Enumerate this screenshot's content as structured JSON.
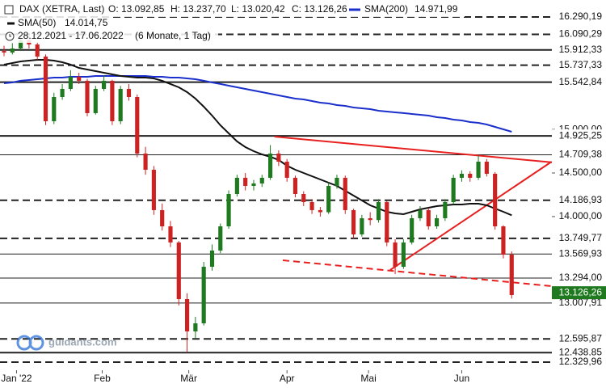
{
  "chart_data": {
    "type": "candlestick",
    "header": {
      "instrument": "DAX (XETRA, Last)",
      "ohlc": [
        "O: 13.092,85",
        "H: 13.237,70",
        "L: 13.020,42",
        "C: 13.126,26"
      ],
      "range": "28.12.2021 - 17.06.2022",
      "period": "(6 Monate, 1 Tag)"
    },
    "watermark": "guidants.com",
    "up_color": "#1f7a1f",
    "down_color": "#cc2222",
    "xlim": [
      -0.485,
      65.83
    ],
    "ylim": [
      12237,
      16485
    ],
    "xticks": [
      {
        "value": 1.5,
        "label": "Jan '22"
      },
      {
        "value": 11.8,
        "label": "Feb"
      },
      {
        "value": 22.2,
        "label": "Mär"
      },
      {
        "value": 34,
        "label": "Apr"
      },
      {
        "value": 43.8,
        "label": "Mai"
      },
      {
        "value": 55,
        "label": "Jun"
      }
    ],
    "yticks": [
      {
        "value": 15000,
        "label": "15.000,00"
      },
      {
        "value": 14500,
        "label": "14.500,00"
      },
      {
        "value": 14000,
        "label": "14.000,00"
      }
    ],
    "levels": [
      {
        "value": 16290.19,
        "label": "16.290,19",
        "style": "dashed"
      },
      {
        "value": 16090.29,
        "label": "16.090,29",
        "style": "dashed"
      },
      {
        "value": 15912.33,
        "label": "15.912,33",
        "style": "thick"
      },
      {
        "value": 15737.33,
        "label": "15.737,33",
        "style": "dashed"
      },
      {
        "value": 15542.84,
        "label": "15.542,84",
        "style": "thick"
      },
      {
        "value": 14925.25,
        "label": "14.925,25",
        "style": "thick"
      },
      {
        "value": 14709.38,
        "label": "14.709,38",
        "style": "thin"
      },
      {
        "value": 14186.93,
        "label": "14.186,93",
        "style": "dashed"
      },
      {
        "value": 13749.77,
        "label": "13.749,77",
        "style": "dashed"
      },
      {
        "value": 13569.93,
        "label": "13.569,93",
        "style": "thin"
      },
      {
        "value": 13294.0,
        "label": "13.294,00",
        "style": "thin"
      },
      {
        "value": 13007.91,
        "label": "13.007,91",
        "style": "thin"
      },
      {
        "value": 12595.87,
        "label": "12.595,87",
        "style": "dashed"
      },
      {
        "value": 12438.85,
        "label": "12.438,85",
        "style": "thick"
      },
      {
        "value": 12329.96,
        "label": "12.329,96",
        "style": "dashed"
      }
    ],
    "last_price": {
      "value": 13126.26,
      "label": "13.126,26",
      "color": "#1f7a1f"
    },
    "trendlines": [
      {
        "from": [
          32.5,
          14917
        ],
        "to": [
          72.3,
          14565
        ],
        "color": "#e82020",
        "style": "solid"
      },
      {
        "from": [
          33.5,
          13498
        ],
        "to": [
          65.8,
          13202
        ],
        "color": "#e82020",
        "style": "dashed"
      },
      {
        "from": [
          46.4,
          13387
        ],
        "to": [
          65.8,
          14630
        ],
        "color": "#e82020",
        "style": "solid"
      }
    ],
    "series": [
      {
        "name": "SMA(200)",
        "label": "14.971,99",
        "color": "#1a2fcc",
        "values": [
          15530,
          15539,
          15558,
          15567,
          15576,
          15585,
          15595,
          15595,
          15604,
          15604,
          15604,
          15613,
          15613,
          15613,
          15613,
          15613,
          15613,
          15613,
          15604,
          15604,
          15595,
          15595,
          15585,
          15576,
          15558,
          15539,
          15521,
          15502,
          15483,
          15465,
          15446,
          15428,
          15409,
          15391,
          15372,
          15353,
          15344,
          15326,
          15307,
          15298,
          15279,
          15270,
          15251,
          15242,
          15233,
          15214,
          15205,
          15196,
          15187,
          15177,
          15168,
          15159,
          15140,
          15131,
          15112,
          15103,
          15084,
          15075,
          15057,
          15029,
          15001,
          14973
        ]
      },
      {
        "name": "SMA(50)",
        "label": "14.014,75",
        "color": "#111111",
        "values": [
          15743,
          15762,
          15780,
          15789,
          15799,
          15799,
          15789,
          15771,
          15743,
          15706,
          15687,
          15669,
          15650,
          15632,
          15613,
          15604,
          15595,
          15595,
          15585,
          15558,
          15521,
          15483,
          15428,
          15353,
          15261,
          15159,
          15047,
          14955,
          14862,
          14797,
          14751,
          14713,
          14686,
          14649,
          14584,
          14537,
          14500,
          14463,
          14426,
          14389,
          14352,
          14296,
          14240,
          14185,
          14129,
          14092,
          14055,
          14036,
          14027,
          14055,
          14083,
          14101,
          14120,
          14129,
          14138,
          14138,
          14148,
          14148,
          14129,
          14092,
          14055,
          14015
        ]
      }
    ],
    "candles": [
      [
        15900,
        15960,
        15840,
        15882
      ],
      [
        15882,
        15990,
        15860,
        15929
      ],
      [
        15929,
        16080,
        15900,
        16021
      ],
      [
        16021,
        16060,
        15930,
        15975
      ],
      [
        15975,
        16000,
        15800,
        15836
      ],
      [
        15836,
        15860,
        15050,
        15094
      ],
      [
        15094,
        15420,
        15060,
        15372
      ],
      [
        15372,
        15520,
        15340,
        15465
      ],
      [
        15465,
        15680,
        15440,
        15604
      ],
      [
        15604,
        15650,
        15520,
        15558
      ],
      [
        15558,
        15580,
        15150,
        15187
      ],
      [
        15187,
        15500,
        15170,
        15465
      ],
      [
        15465,
        15620,
        15440,
        15558
      ],
      [
        15558,
        15570,
        15050,
        15094
      ],
      [
        15094,
        15500,
        15060,
        15465
      ],
      [
        15465,
        15520,
        15330,
        15372
      ],
      [
        15372,
        15400,
        14680,
        14723
      ],
      [
        14723,
        14800,
        14480,
        14537
      ],
      [
        14537,
        14580,
        14020,
        14074
      ],
      [
        14074,
        14150,
        13840,
        13888
      ],
      [
        13888,
        13950,
        13650,
        13703
      ],
      [
        13703,
        13720,
        12980,
        13053
      ],
      [
        13053,
        13120,
        12440,
        12682
      ],
      [
        12682,
        12850,
        12600,
        12775
      ],
      [
        12775,
        13480,
        12750,
        13424
      ],
      [
        13424,
        13680,
        13380,
        13610
      ],
      [
        13610,
        13920,
        13580,
        13888
      ],
      [
        13888,
        14300,
        13860,
        14259
      ],
      [
        14259,
        14480,
        14230,
        14445
      ],
      [
        14445,
        14500,
        14300,
        14352
      ],
      [
        14352,
        14420,
        14300,
        14380
      ],
      [
        14380,
        14480,
        14340,
        14445
      ],
      [
        14445,
        14820,
        14420,
        14723
      ],
      [
        14723,
        14760,
        14580,
        14630
      ],
      [
        14630,
        14660,
        14400,
        14445
      ],
      [
        14445,
        14470,
        14220,
        14259
      ],
      [
        14259,
        14290,
        14120,
        14166
      ],
      [
        14166,
        14200,
        14030,
        14074
      ],
      [
        14074,
        14110,
        14000,
        14050
      ],
      [
        14050,
        14390,
        14030,
        14352
      ],
      [
        14352,
        14480,
        14320,
        14445
      ],
      [
        14445,
        14470,
        14030,
        14074
      ],
      [
        14074,
        14090,
        13750,
        13795
      ],
      [
        13795,
        14020,
        13770,
        13981
      ],
      [
        13981,
        14050,
        13900,
        13960
      ],
      [
        13960,
        14200,
        13930,
        14166
      ],
      [
        14166,
        14180,
        13660,
        13703
      ],
      [
        13703,
        13740,
        13340,
        13424
      ],
      [
        13424,
        13740,
        13400,
        13703
      ],
      [
        13703,
        14020,
        13680,
        13981
      ],
      [
        13981,
        14120,
        13950,
        14074
      ],
      [
        14074,
        14100,
        13850,
        13888
      ],
      [
        13888,
        14020,
        13860,
        13981
      ],
      [
        13981,
        14200,
        13950,
        14166
      ],
      [
        14166,
        14480,
        14140,
        14445
      ],
      [
        14445,
        14530,
        14400,
        14491
      ],
      [
        14491,
        14520,
        14400,
        14445
      ],
      [
        14445,
        14700,
        14420,
        14630
      ],
      [
        14630,
        14660,
        14460,
        14491
      ],
      [
        14491,
        14510,
        13850,
        13888
      ],
      [
        13888,
        13900,
        13520,
        13563
      ],
      [
        13563,
        13600,
        13060,
        13100
      ]
    ]
  }
}
